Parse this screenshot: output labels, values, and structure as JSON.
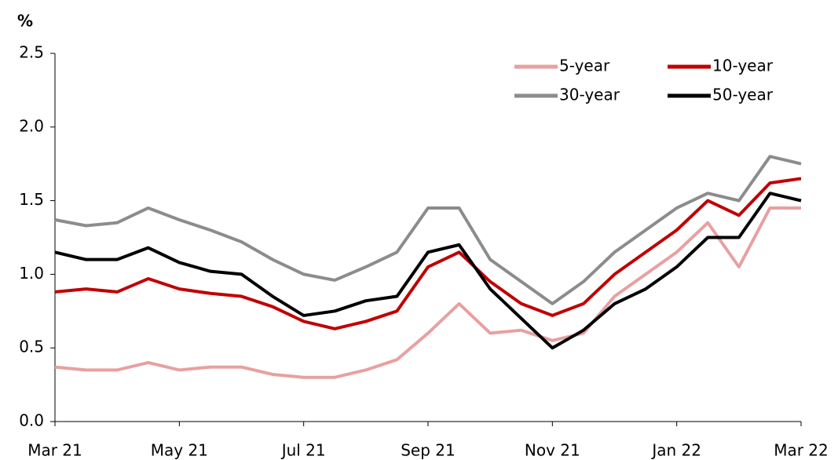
{
  "chart_data": {
    "type": "line",
    "y_label": "%",
    "x": [
      0,
      0.5,
      1,
      1.5,
      2,
      2.5,
      3,
      3.5,
      4,
      4.5,
      5,
      5.5,
      6,
      6.5,
      7,
      7.5,
      8,
      8.5,
      9,
      9.5,
      10,
      10.5,
      11,
      11.5,
      12
    ],
    "series": [
      {
        "name": "5-year",
        "color": "#e8a0a0",
        "values": [
          0.37,
          0.35,
          0.35,
          0.4,
          0.35,
          0.37,
          0.37,
          0.32,
          0.3,
          0.3,
          0.35,
          0.42,
          0.6,
          0.8,
          0.6,
          0.62,
          0.55,
          0.6,
          0.85,
          1.0,
          1.15,
          1.35,
          1.05,
          1.45,
          1.45
        ]
      },
      {
        "name": "10-year",
        "color": "#c00000",
        "values": [
          0.88,
          0.9,
          0.88,
          0.97,
          0.9,
          0.87,
          0.85,
          0.78,
          0.68,
          0.63,
          0.68,
          0.75,
          1.05,
          1.15,
          0.95,
          0.8,
          0.72,
          0.8,
          1.0,
          1.15,
          1.3,
          1.5,
          1.4,
          1.62,
          1.65
        ]
      },
      {
        "name": "30-year",
        "color": "#8c8c8c",
        "values": [
          1.37,
          1.33,
          1.35,
          1.45,
          1.37,
          1.3,
          1.22,
          1.1,
          1.0,
          0.96,
          1.05,
          1.15,
          1.45,
          1.45,
          1.1,
          0.95,
          0.8,
          0.95,
          1.15,
          1.3,
          1.45,
          1.55,
          1.5,
          1.8,
          1.75
        ]
      },
      {
        "name": "50-year",
        "color": "#000000",
        "values": [
          1.15,
          1.1,
          1.1,
          1.18,
          1.08,
          1.02,
          1.0,
          0.85,
          0.72,
          0.75,
          0.82,
          0.85,
          1.15,
          1.2,
          0.9,
          0.7,
          0.5,
          0.62,
          0.8,
          0.9,
          1.05,
          1.25,
          1.25,
          1.55,
          1.5
        ]
      }
    ],
    "xlim": [
      0,
      12
    ],
    "xticks": [
      {
        "value": 0,
        "label": "Mar 21"
      },
      {
        "value": 2,
        "label": "May 21"
      },
      {
        "value": 4,
        "label": "Jul 21"
      },
      {
        "value": 6,
        "label": "Sep 21"
      },
      {
        "value": 8,
        "label": "Nov 21"
      },
      {
        "value": 10,
        "label": "Jan 22"
      },
      {
        "value": 12,
        "label": "Mar 22"
      }
    ],
    "ylim": [
      0,
      2.5
    ],
    "yticks": [
      {
        "value": 0,
        "label": "0.0"
      },
      0.5,
      {
        "value": 1,
        "label": "1.0"
      },
      1.5,
      {
        "value": 2,
        "label": "2.0"
      },
      2.5
    ],
    "grid": false,
    "legend": "top-right"
  }
}
